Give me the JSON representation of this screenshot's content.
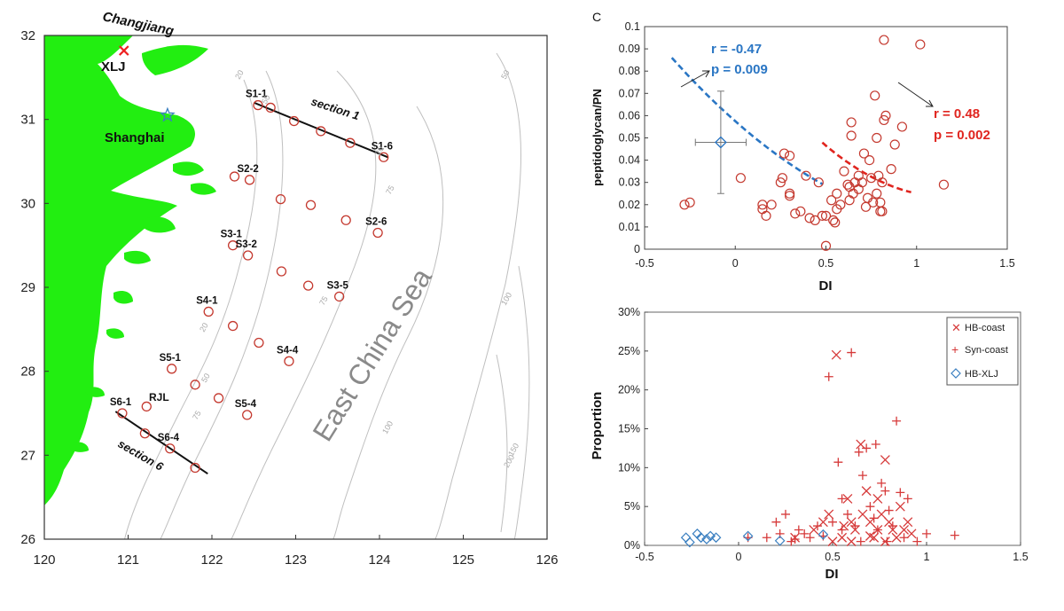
{
  "chart_data": [
    {
      "id": "map",
      "type": "scatter",
      "x_ticks": [
        "120",
        "121",
        "122",
        "123",
        "124",
        "125",
        "126"
      ],
      "y_ticks": [
        "26",
        "27",
        "28",
        "29",
        "30",
        "31",
        "32"
      ],
      "xlim": [
        120,
        126
      ],
      "ylim": [
        26,
        32
      ],
      "places": {
        "river": "Changjiang",
        "site": "XLJ",
        "city": "Shanghai",
        "sea": "East China Sea",
        "site2": "RJL"
      },
      "sections": [
        {
          "label": "section 1",
          "from": [
            122.5,
            31.2
          ],
          "to": [
            124.1,
            30.55
          ]
        },
        {
          "label": "section 6",
          "from": [
            120.85,
            27.52
          ],
          "to": [
            121.95,
            26.78
          ]
        }
      ],
      "isobath_labels": [
        "20",
        "50",
        "20",
        "50",
        "75",
        "75",
        "100",
        "100",
        "150",
        "200",
        "75",
        "50",
        "20"
      ],
      "stations": [
        {
          "name": "S1-1",
          "lon": 122.55,
          "lat": 31.17
        },
        {
          "name": "",
          "lon": 122.7,
          "lat": 31.14
        },
        {
          "name": "",
          "lon": 122.98,
          "lat": 30.98
        },
        {
          "name": "",
          "lon": 123.3,
          "lat": 30.86
        },
        {
          "name": "",
          "lon": 123.65,
          "lat": 30.72
        },
        {
          "name": "S1-6",
          "lon": 124.05,
          "lat": 30.55
        },
        {
          "name": "",
          "lon": 122.27,
          "lat": 30.32
        },
        {
          "name": "S2-2",
          "lon": 122.45,
          "lat": 30.28
        },
        {
          "name": "",
          "lon": 122.82,
          "lat": 30.05
        },
        {
          "name": "",
          "lon": 123.18,
          "lat": 29.98
        },
        {
          "name": "",
          "lon": 123.6,
          "lat": 29.8
        },
        {
          "name": "S2-6",
          "lon": 123.98,
          "lat": 29.65
        },
        {
          "name": "S3-1",
          "lon": 122.25,
          "lat": 29.5
        },
        {
          "name": "S3-2",
          "lon": 122.43,
          "lat": 29.38
        },
        {
          "name": "",
          "lon": 122.83,
          "lat": 29.19
        },
        {
          "name": "",
          "lon": 123.15,
          "lat": 29.02
        },
        {
          "name": "S3-5",
          "lon": 123.52,
          "lat": 28.89
        },
        {
          "name": "S4-1",
          "lon": 121.96,
          "lat": 28.71
        },
        {
          "name": "",
          "lon": 122.25,
          "lat": 28.54
        },
        {
          "name": "",
          "lon": 122.56,
          "lat": 28.34
        },
        {
          "name": "S4-4",
          "lon": 122.92,
          "lat": 28.12
        },
        {
          "name": "S5-1",
          "lon": 121.52,
          "lat": 28.03
        },
        {
          "name": "",
          "lon": 121.8,
          "lat": 27.84
        },
        {
          "name": "",
          "lon": 122.08,
          "lat": 27.68
        },
        {
          "name": "S5-4",
          "lon": 122.42,
          "lat": 27.48
        },
        {
          "name": "",
          "lon": 121.22,
          "lat": 27.58
        },
        {
          "name": "S6-1",
          "lon": 120.93,
          "lat": 27.5
        },
        {
          "name": "",
          "lon": 121.2,
          "lat": 27.26
        },
        {
          "name": "S6-4",
          "lon": 121.5,
          "lat": 27.08
        },
        {
          "name": "",
          "lon": 121.8,
          "lat": 26.85
        }
      ],
      "markers": [
        {
          "name": "XLJ",
          "lon": 120.95,
          "lat": 31.82,
          "shape": "x",
          "color": "#ee2222"
        },
        {
          "name": "Shanghai",
          "lon": 121.47,
          "lat": 31.05,
          "shape": "star",
          "color": "#3a7fc0"
        }
      ]
    },
    {
      "id": "panel-c",
      "type": "scatter",
      "panel_label": "C",
      "xlabel": "DI",
      "ylabel": "peptidoglycan/PN",
      "xlim": [
        -0.5,
        1.5
      ],
      "ylim": [
        0,
        0.1
      ],
      "x_ticks": [
        "-0.5",
        "0",
        "0.5",
        "1",
        "1.5"
      ],
      "y_ticks": [
        "0",
        "0.01",
        "0.02",
        "0.03",
        "0.04",
        "0.05",
        "0.06",
        "0.07",
        "0.08",
        "0.09",
        "0.1"
      ],
      "fits": [
        {
          "color": "#2a76c4",
          "coef": [
            0.0273,
            -0.0719,
            0.0575
          ],
          "x_range": [
            -0.35,
            0.48
          ],
          "r_text": "r = -0.47",
          "p_text": "p = 0.009"
        },
        {
          "color": "#e0251f",
          "coef": [
            0.0513,
            -0.12,
            0.0937
          ],
          "x_range": [
            0.48,
            0.97
          ],
          "r_text": "r = 0.48",
          "p_text": "p = 0.002"
        }
      ],
      "mean_point": {
        "x": -0.08,
        "y": 0.048,
        "x_err": 0.14,
        "y_err": 0.023,
        "color": "#2a76c4"
      },
      "points": [
        [
          -0.28,
          0.02
        ],
        [
          -0.25,
          0.021
        ],
        [
          0.03,
          0.032
        ],
        [
          0.15,
          0.02
        ],
        [
          0.15,
          0.018
        ],
        [
          0.17,
          0.015
        ],
        [
          0.2,
          0.02
        ],
        [
          0.25,
          0.03
        ],
        [
          0.26,
          0.032
        ],
        [
          0.27,
          0.043
        ],
        [
          0.3,
          0.024
        ],
        [
          0.3,
          0.025
        ],
        [
          0.3,
          0.042
        ],
        [
          0.33,
          0.016
        ],
        [
          0.36,
          0.017
        ],
        [
          0.39,
          0.033
        ],
        [
          0.41,
          0.014
        ],
        [
          0.44,
          0.013
        ],
        [
          0.46,
          0.03
        ],
        [
          0.48,
          0.015
        ],
        [
          0.5,
          0.0015
        ],
        [
          0.5,
          0.015
        ],
        [
          0.53,
          0.022
        ],
        [
          0.54,
          0.013
        ],
        [
          0.55,
          0.012
        ],
        [
          0.56,
          0.025
        ],
        [
          0.56,
          0.018
        ],
        [
          0.58,
          0.02
        ],
        [
          0.6,
          0.035
        ],
        [
          0.62,
          0.029
        ],
        [
          0.63,
          0.028
        ],
        [
          0.63,
          0.022
        ],
        [
          0.64,
          0.057
        ],
        [
          0.64,
          0.051
        ],
        [
          0.65,
          0.025
        ],
        [
          0.66,
          0.03
        ],
        [
          0.68,
          0.033
        ],
        [
          0.68,
          0.027
        ],
        [
          0.7,
          0.03
        ],
        [
          0.71,
          0.043
        ],
        [
          0.72,
          0.019
        ],
        [
          0.73,
          0.023
        ],
        [
          0.74,
          0.04
        ],
        [
          0.75,
          0.032
        ],
        [
          0.76,
          0.021
        ],
        [
          0.77,
          0.069
        ],
        [
          0.78,
          0.025
        ],
        [
          0.78,
          0.05
        ],
        [
          0.79,
          0.033
        ],
        [
          0.8,
          0.021
        ],
        [
          0.8,
          0.017
        ],
        [
          0.81,
          0.017
        ],
        [
          0.81,
          0.03
        ],
        [
          0.82,
          0.094
        ],
        [
          0.82,
          0.058
        ],
        [
          0.83,
          0.06
        ],
        [
          0.86,
          0.036
        ],
        [
          0.88,
          0.047
        ],
        [
          0.92,
          0.055
        ],
        [
          1.02,
          0.092
        ],
        [
          1.15,
          0.029
        ]
      ]
    },
    {
      "id": "panel-d",
      "type": "scatter",
      "xlabel": "DI",
      "ylabel": "Proportion",
      "xlim": [
        -0.5,
        1.5
      ],
      "ylim": [
        0,
        0.3
      ],
      "x_ticks": [
        "-0.5",
        "0",
        "0.5",
        "1",
        "1.5"
      ],
      "y_ticks": [
        "0%",
        "5%",
        "10%",
        "15%",
        "20%",
        "25%",
        "30%"
      ],
      "series": [
        {
          "name": "HB-coast",
          "marker": "x",
          "color": "#d63a3a",
          "points": [
            [
              0.3,
              0.01
            ],
            [
              0.4,
              0.02
            ],
            [
              0.45,
              0.03
            ],
            [
              0.48,
              0.04
            ],
            [
              0.52,
              0.245
            ],
            [
              0.55,
              0.01
            ],
            [
              0.58,
              0.06
            ],
            [
              0.6,
              0.005
            ],
            [
              0.62,
              0.02
            ],
            [
              0.65,
              0.13
            ],
            [
              0.68,
              0.07
            ],
            [
              0.7,
              0.03
            ],
            [
              0.72,
              0.01
            ],
            [
              0.74,
              0.02
            ],
            [
              0.76,
              0.04
            ],
            [
              0.78,
              0.11
            ],
            [
              0.8,
              0.03
            ],
            [
              0.82,
              0.02
            ],
            [
              0.84,
              0.01
            ],
            [
              0.86,
              0.05
            ],
            [
              0.88,
              0.02
            ],
            [
              0.9,
              0.03
            ],
            [
              0.92,
              0.015
            ],
            [
              0.5,
              0.005
            ],
            [
              0.6,
              0.03
            ],
            [
              0.7,
              0.012
            ],
            [
              0.78,
              0.005
            ],
            [
              0.66,
              0.04
            ],
            [
              0.74,
              0.06
            ],
            [
              0.56,
              0.025
            ]
          ]
        },
        {
          "name": "Syn-coast",
          "marker": "+",
          "color": "#d63a3a",
          "points": [
            [
              0.05,
              0.01
            ],
            [
              0.15,
              0.01
            ],
            [
              0.2,
              0.03
            ],
            [
              0.22,
              0.015
            ],
            [
              0.25,
              0.04
            ],
            [
              0.28,
              0.005
            ],
            [
              0.32,
              0.02
            ],
            [
              0.35,
              0.015
            ],
            [
              0.38,
              0.01
            ],
            [
              0.42,
              0.025
            ],
            [
              0.48,
              0.217
            ],
            [
              0.5,
              0.03
            ],
            [
              0.53,
              0.107
            ],
            [
              0.55,
              0.02
            ],
            [
              0.58,
              0.04
            ],
            [
              0.6,
              0.248
            ],
            [
              0.62,
              0.025
            ],
            [
              0.64,
              0.12
            ],
            [
              0.66,
              0.09
            ],
            [
              0.68,
              0.125
            ],
            [
              0.7,
              0.05
            ],
            [
              0.72,
              0.035
            ],
            [
              0.74,
              0.02
            ],
            [
              0.76,
              0.08
            ],
            [
              0.78,
              0.07
            ],
            [
              0.8,
              0.045
            ],
            [
              0.82,
              0.025
            ],
            [
              0.84,
              0.16
            ],
            [
              0.86,
              0.068
            ],
            [
              0.9,
              0.06
            ],
            [
              0.95,
              0.005
            ],
            [
              1.0,
              0.015
            ],
            [
              1.15,
              0.013
            ],
            [
              0.3,
              0.008
            ],
            [
              0.45,
              0.012
            ],
            [
              0.55,
              0.06
            ],
            [
              0.65,
              0.005
            ],
            [
              0.73,
              0.13
            ],
            [
              0.79,
              0.005
            ],
            [
              0.88,
              0.01
            ]
          ]
        },
        {
          "name": "HB-XLJ",
          "marker": "diamond",
          "color": "#3a7fc0",
          "points": [
            [
              -0.28,
              0.01
            ],
            [
              -0.26,
              0.004
            ],
            [
              -0.22,
              0.015
            ],
            [
              -0.2,
              0.01
            ],
            [
              -0.17,
              0.008
            ],
            [
              -0.15,
              0.012
            ],
            [
              -0.12,
              0.01
            ],
            [
              0.05,
              0.012
            ],
            [
              0.22,
              0.006
            ],
            [
              0.45,
              0.014
            ]
          ]
        }
      ]
    }
  ]
}
